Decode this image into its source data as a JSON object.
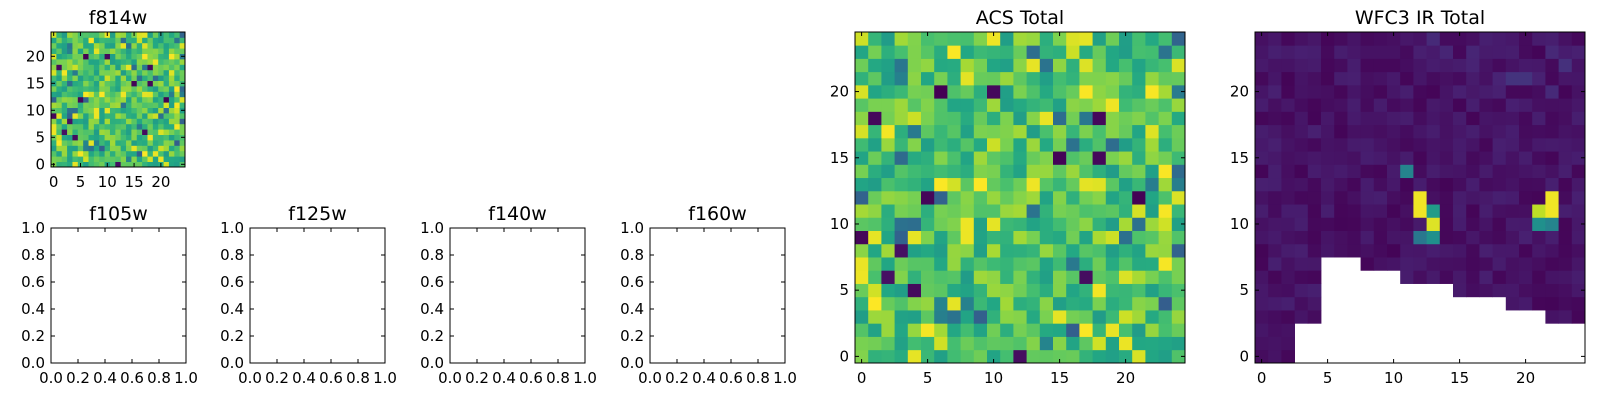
{
  "chart_data": [
    {
      "id": "f814w",
      "type": "heatmap",
      "title": "f814w",
      "grid_size": 25,
      "xticks": [
        0,
        5,
        10,
        15,
        20
      ],
      "yticks": [
        0,
        5,
        10,
        15,
        20
      ],
      "colormap": "viridis",
      "value_range": [
        0,
        1
      ],
      "seed": 17,
      "cells_note": "25x25 pixel image, mostly green-yellow with scattered dark pixels"
    },
    {
      "id": "f105w",
      "type": "heatmap",
      "title": "f105w",
      "empty": true,
      "xticks": [
        "0.0",
        "0.2",
        "0.4",
        "0.6",
        "0.8",
        "1.0"
      ],
      "yticks": [
        "0.0",
        "0.2",
        "0.4",
        "0.6",
        "0.8",
        "1.0"
      ]
    },
    {
      "id": "f125w",
      "type": "heatmap",
      "title": "f125w",
      "empty": true,
      "xticks": [
        "0.0",
        "0.2",
        "0.4",
        "0.6",
        "0.8",
        "1.0"
      ],
      "yticks": [
        "0.0",
        "0.2",
        "0.4",
        "0.6",
        "0.8",
        "1.0"
      ]
    },
    {
      "id": "f140w",
      "type": "heatmap",
      "title": "f140w",
      "empty": true,
      "xticks": [
        "0.0",
        "0.2",
        "0.4",
        "0.6",
        "0.8",
        "1.0"
      ],
      "yticks": [
        "0.0",
        "0.2",
        "0.4",
        "0.6",
        "0.8",
        "1.0"
      ]
    },
    {
      "id": "f160w",
      "type": "heatmap",
      "title": "f160w",
      "empty": true,
      "xticks": [
        "0.0",
        "0.2",
        "0.4",
        "0.6",
        "0.8",
        "1.0"
      ],
      "yticks": [
        "0.0",
        "0.2",
        "0.4",
        "0.6",
        "0.8",
        "1.0"
      ]
    },
    {
      "id": "acs_total",
      "type": "heatmap",
      "title": "ACS Total",
      "grid_size": 25,
      "xticks": [
        0,
        5,
        10,
        15,
        20
      ],
      "yticks": [
        0,
        5,
        10,
        15,
        20
      ],
      "colormap": "viridis",
      "value_range": [
        0,
        1
      ],
      "seed": 17
    },
    {
      "id": "wfc3_ir_total",
      "type": "heatmap",
      "title": "WFC3 IR Total",
      "grid_size": 25,
      "xticks": [
        0,
        5,
        10,
        15,
        20
      ],
      "yticks": [
        0,
        5,
        10,
        15,
        20
      ],
      "colormap": "viridis",
      "value_range": [
        0,
        1
      ],
      "seed": 91,
      "background_level": 0.05,
      "sources": [
        {
          "x": 11,
          "y": 14,
          "value": 0.45
        },
        {
          "x": 12,
          "y": 12,
          "value": 0.98
        },
        {
          "x": 12,
          "y": 11,
          "value": 0.98
        },
        {
          "x": 13,
          "y": 11,
          "value": 0.55
        },
        {
          "x": 13,
          "y": 10,
          "value": 0.95
        },
        {
          "x": 12,
          "y": 9,
          "value": 0.4
        },
        {
          "x": 13,
          "y": 9,
          "value": 0.5
        },
        {
          "x": 22,
          "y": 12,
          "value": 0.98
        },
        {
          "x": 22,
          "y": 11,
          "value": 0.98
        },
        {
          "x": 21,
          "y": 11,
          "value": 0.9
        },
        {
          "x": 21,
          "y": 10,
          "value": 0.5
        },
        {
          "x": 22,
          "y": 10,
          "value": 0.45
        }
      ],
      "masked_columns": [
        {
          "x_from": 3,
          "x_to": 4,
          "masked_below_y": 3
        },
        {
          "x_from": 5,
          "x_to": 7,
          "masked_below_y": 8
        },
        {
          "x_from": 8,
          "x_to": 10,
          "masked_below_y": 7
        },
        {
          "x_from": 11,
          "x_to": 14,
          "masked_below_y": 6
        },
        {
          "x_from": 15,
          "x_to": 18,
          "masked_below_y": 5
        },
        {
          "x_from": 19,
          "x_to": 21,
          "masked_below_y": 4
        },
        {
          "x_from": 22,
          "x_to": 24,
          "masked_below_y": 3
        }
      ]
    }
  ]
}
